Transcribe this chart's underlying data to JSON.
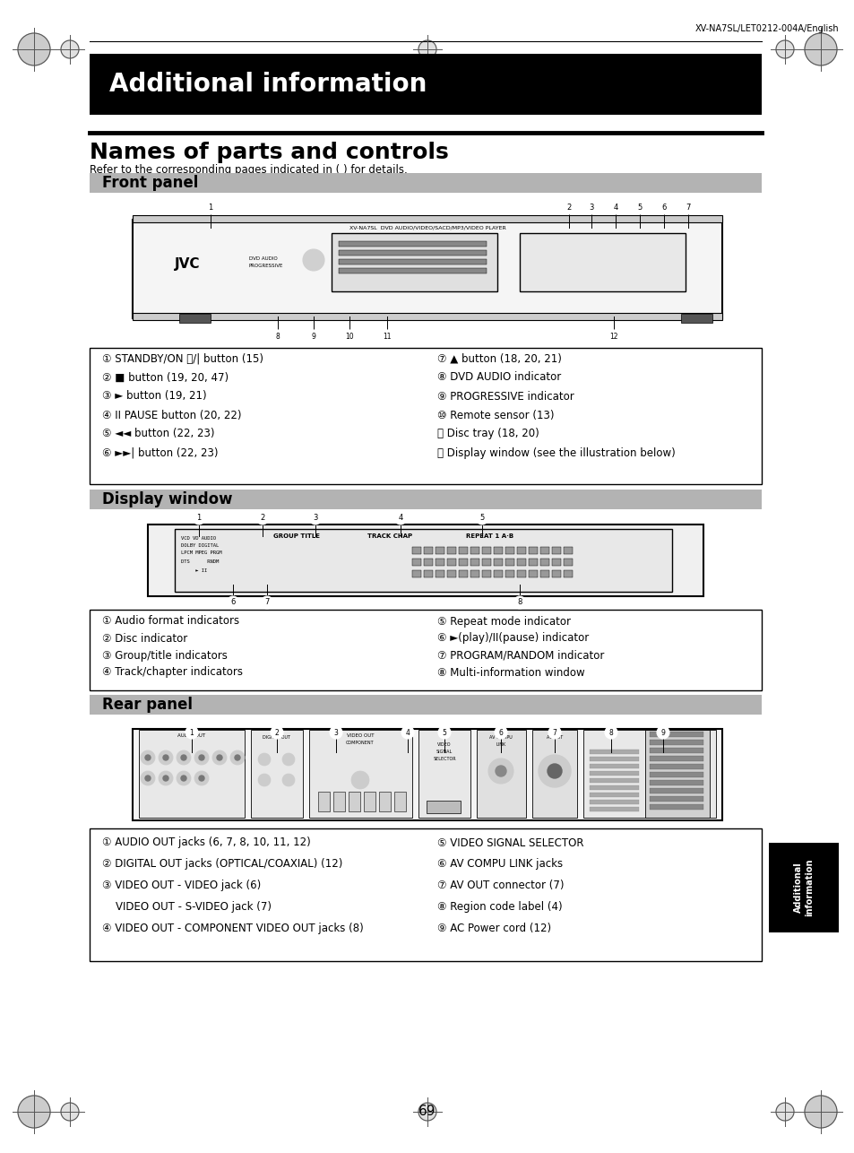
{
  "page_header": "XV-NA7SL/LET0212-004A/English",
  "main_title": "Additional information",
  "section_title": "Names of parts and controls",
  "subtitle": "Refer to the corresponding pages indicated in ( ) for details.",
  "front_panel_label": "Front panel",
  "display_window_label": "Display window",
  "rear_panel_label": "Rear panel",
  "front_panel_items_left": [
    "① STANDBY/ON ⏻/| button (15)",
    "② ■ button (19, 20, 47)",
    "③ ► button (19, 21)",
    "④ II PAUSE button (20, 22)",
    "⑤ ◄◄ button (22, 23)",
    "⑥ ►►| button (22, 23)"
  ],
  "front_panel_items_right": [
    "⑦ ▲ button (18, 20, 21)",
    "⑧ DVD AUDIO indicator",
    "⑨ PROGRESSIVE indicator",
    "⑩ Remote sensor (13)",
    "⑪ Disc tray (18, 20)",
    "⑫ Display window (see the illustration below)"
  ],
  "display_window_items_left": [
    "① Audio format indicators",
    "② Disc indicator",
    "③ Group/title indicators",
    "④ Track/chapter indicators"
  ],
  "display_window_items_right": [
    "⑤ Repeat mode indicator",
    "⑥ ►(play)/II(pause) indicator",
    "⑦ PROGRAM/RANDOM indicator",
    "⑧ Multi-information window"
  ],
  "rear_panel_items_left": [
    "① AUDIO OUT jacks (6, 7, 8, 10, 11, 12)",
    "② DIGITAL OUT jacks (OPTICAL/COAXIAL) (12)",
    "③ VIDEO OUT - VIDEO jack (6)",
    "    VIDEO OUT - S-VIDEO jack (7)",
    "④ VIDEO OUT - COMPONENT VIDEO OUT jacks (8)"
  ],
  "rear_panel_items_right": [
    "⑤ VIDEO SIGNAL SELECTOR",
    "⑥ AV COMPU LINK jacks",
    "⑦ AV OUT connector (7)",
    "⑧ Region code label (4)",
    "⑨ AC Power cord (12)"
  ],
  "page_number": "69",
  "side_label": "Additional\ninformation",
  "bg_color": "#ffffff",
  "header_bg": "#000000",
  "header_text_color": "#ffffff",
  "section_bg": "#b3b3b3",
  "text_color": "#000000"
}
